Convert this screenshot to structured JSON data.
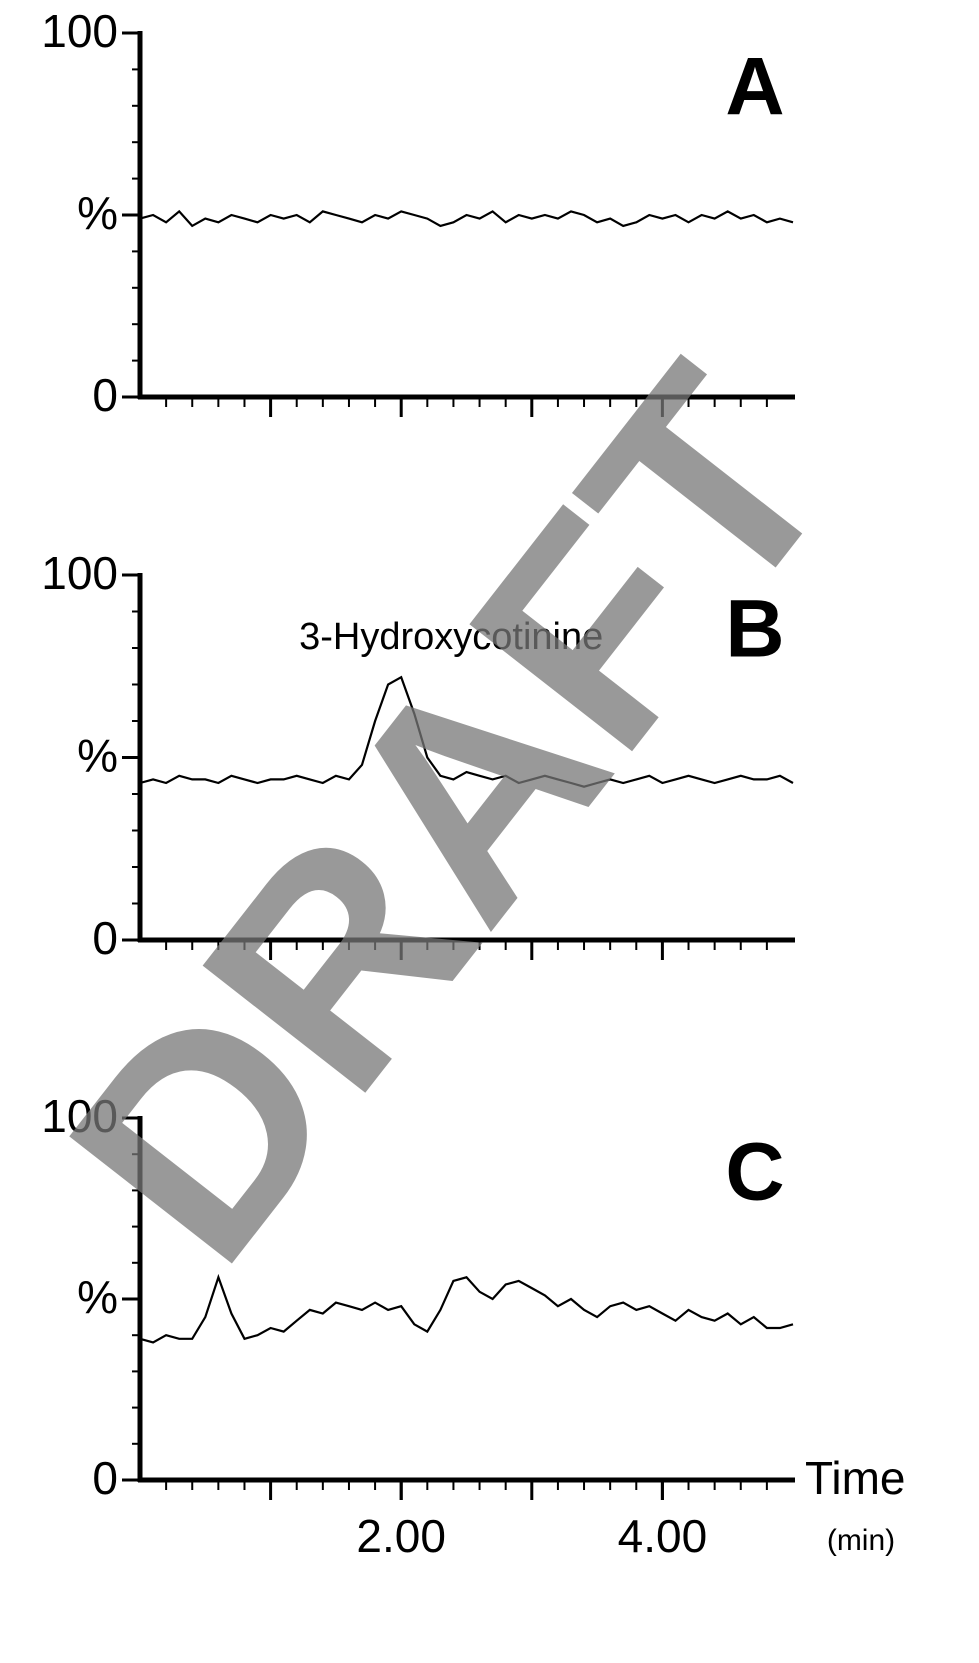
{
  "chart_data": [
    {
      "type": "line",
      "panel_label": "A",
      "color": "#000000",
      "xlim": [
        0,
        5
      ],
      "ylim": [
        0,
        100
      ],
      "yticks": [
        0,
        {
          "value": 50,
          "label": "%"
        },
        100
      ],
      "x": [
        0,
        0.1,
        0.2,
        0.3,
        0.4,
        0.5,
        0.6,
        0.7,
        0.8,
        0.9,
        1,
        1.1,
        1.2,
        1.3,
        1.4,
        1.5,
        1.6,
        1.7,
        1.8,
        1.9,
        2,
        2.1,
        2.2,
        2.3,
        2.4,
        2.5,
        2.6,
        2.7,
        2.8,
        2.9,
        3,
        3.1,
        3.2,
        3.3,
        3.4,
        3.5,
        3.6,
        3.7,
        3.8,
        3.9,
        4,
        4.1,
        4.2,
        4.3,
        4.4,
        4.5,
        4.6,
        4.7,
        4.8,
        4.9,
        5
      ],
      "values": [
        49,
        50,
        48,
        51,
        47,
        49,
        48,
        50,
        49,
        48,
        50,
        49,
        50,
        48,
        51,
        50,
        49,
        48,
        50,
        49,
        51,
        50,
        49,
        47,
        48,
        50,
        49,
        51,
        48,
        50,
        49,
        50,
        49,
        51,
        50,
        48,
        49,
        47,
        48,
        50,
        49,
        50,
        48,
        50,
        49,
        51,
        49,
        50,
        48,
        49,
        48
      ]
    },
    {
      "type": "line",
      "panel_label": "B",
      "color": "#000000",
      "annotation": "3-Hydroxycotinine",
      "xlim": [
        0,
        5
      ],
      "ylim": [
        0,
        100
      ],
      "yticks": [
        0,
        {
          "value": 50,
          "label": "%"
        },
        100
      ],
      "x": [
        0,
        0.1,
        0.2,
        0.3,
        0.4,
        0.5,
        0.6,
        0.7,
        0.8,
        0.9,
        1,
        1.1,
        1.2,
        1.3,
        1.4,
        1.5,
        1.6,
        1.7,
        1.8,
        1.9,
        2,
        2.1,
        2.2,
        2.3,
        2.4,
        2.5,
        2.6,
        2.7,
        2.8,
        2.9,
        3,
        3.1,
        3.2,
        3.3,
        3.4,
        3.5,
        3.6,
        3.7,
        3.8,
        3.9,
        4,
        4.1,
        4.2,
        4.3,
        4.4,
        4.5,
        4.6,
        4.7,
        4.8,
        4.9,
        5
      ],
      "values": [
        43,
        44,
        43,
        45,
        44,
        44,
        43,
        45,
        44,
        43,
        44,
        44,
        45,
        44,
        43,
        45,
        44,
        48,
        60,
        70,
        72,
        62,
        50,
        45,
        44,
        46,
        45,
        44,
        45,
        43,
        44,
        45,
        44,
        43,
        42,
        43,
        44,
        43,
        44,
        45,
        43,
        44,
        45,
        44,
        43,
        44,
        45,
        44,
        44,
        45,
        43
      ]
    },
    {
      "type": "line",
      "panel_label": "C",
      "color": "#000000",
      "xlabel": "Time",
      "xlabel_unit": "(min)",
      "xlim": [
        0,
        5
      ],
      "ylim": [
        0,
        100
      ],
      "yticks": [
        0,
        {
          "value": 50,
          "label": "%"
        },
        100
      ],
      "xticks": [
        {
          "value": 2,
          "label": "2.00"
        },
        {
          "value": 4,
          "label": "4.00"
        }
      ],
      "x": [
        0,
        0.1,
        0.2,
        0.3,
        0.4,
        0.5,
        0.6,
        0.7,
        0.8,
        0.9,
        1,
        1.1,
        1.2,
        1.3,
        1.4,
        1.5,
        1.6,
        1.7,
        1.8,
        1.9,
        2,
        2.1,
        2.2,
        2.3,
        2.4,
        2.5,
        2.6,
        2.7,
        2.8,
        2.9,
        3,
        3.1,
        3.2,
        3.3,
        3.4,
        3.5,
        3.6,
        3.7,
        3.8,
        3.9,
        4,
        4.1,
        4.2,
        4.3,
        4.4,
        4.5,
        4.6,
        4.7,
        4.8,
        4.9,
        5
      ],
      "values": [
        39,
        38,
        40,
        39,
        39,
        45,
        56,
        46,
        39,
        40,
        42,
        41,
        44,
        47,
        46,
        49,
        48,
        47,
        49,
        47,
        48,
        43,
        41,
        47,
        55,
        56,
        52,
        50,
        54,
        55,
        53,
        51,
        48,
        50,
        47,
        45,
        48,
        49,
        47,
        48,
        46,
        44,
        47,
        45,
        44,
        46,
        43,
        45,
        42,
        42,
        43
      ]
    }
  ],
  "watermark": "DRAFT"
}
